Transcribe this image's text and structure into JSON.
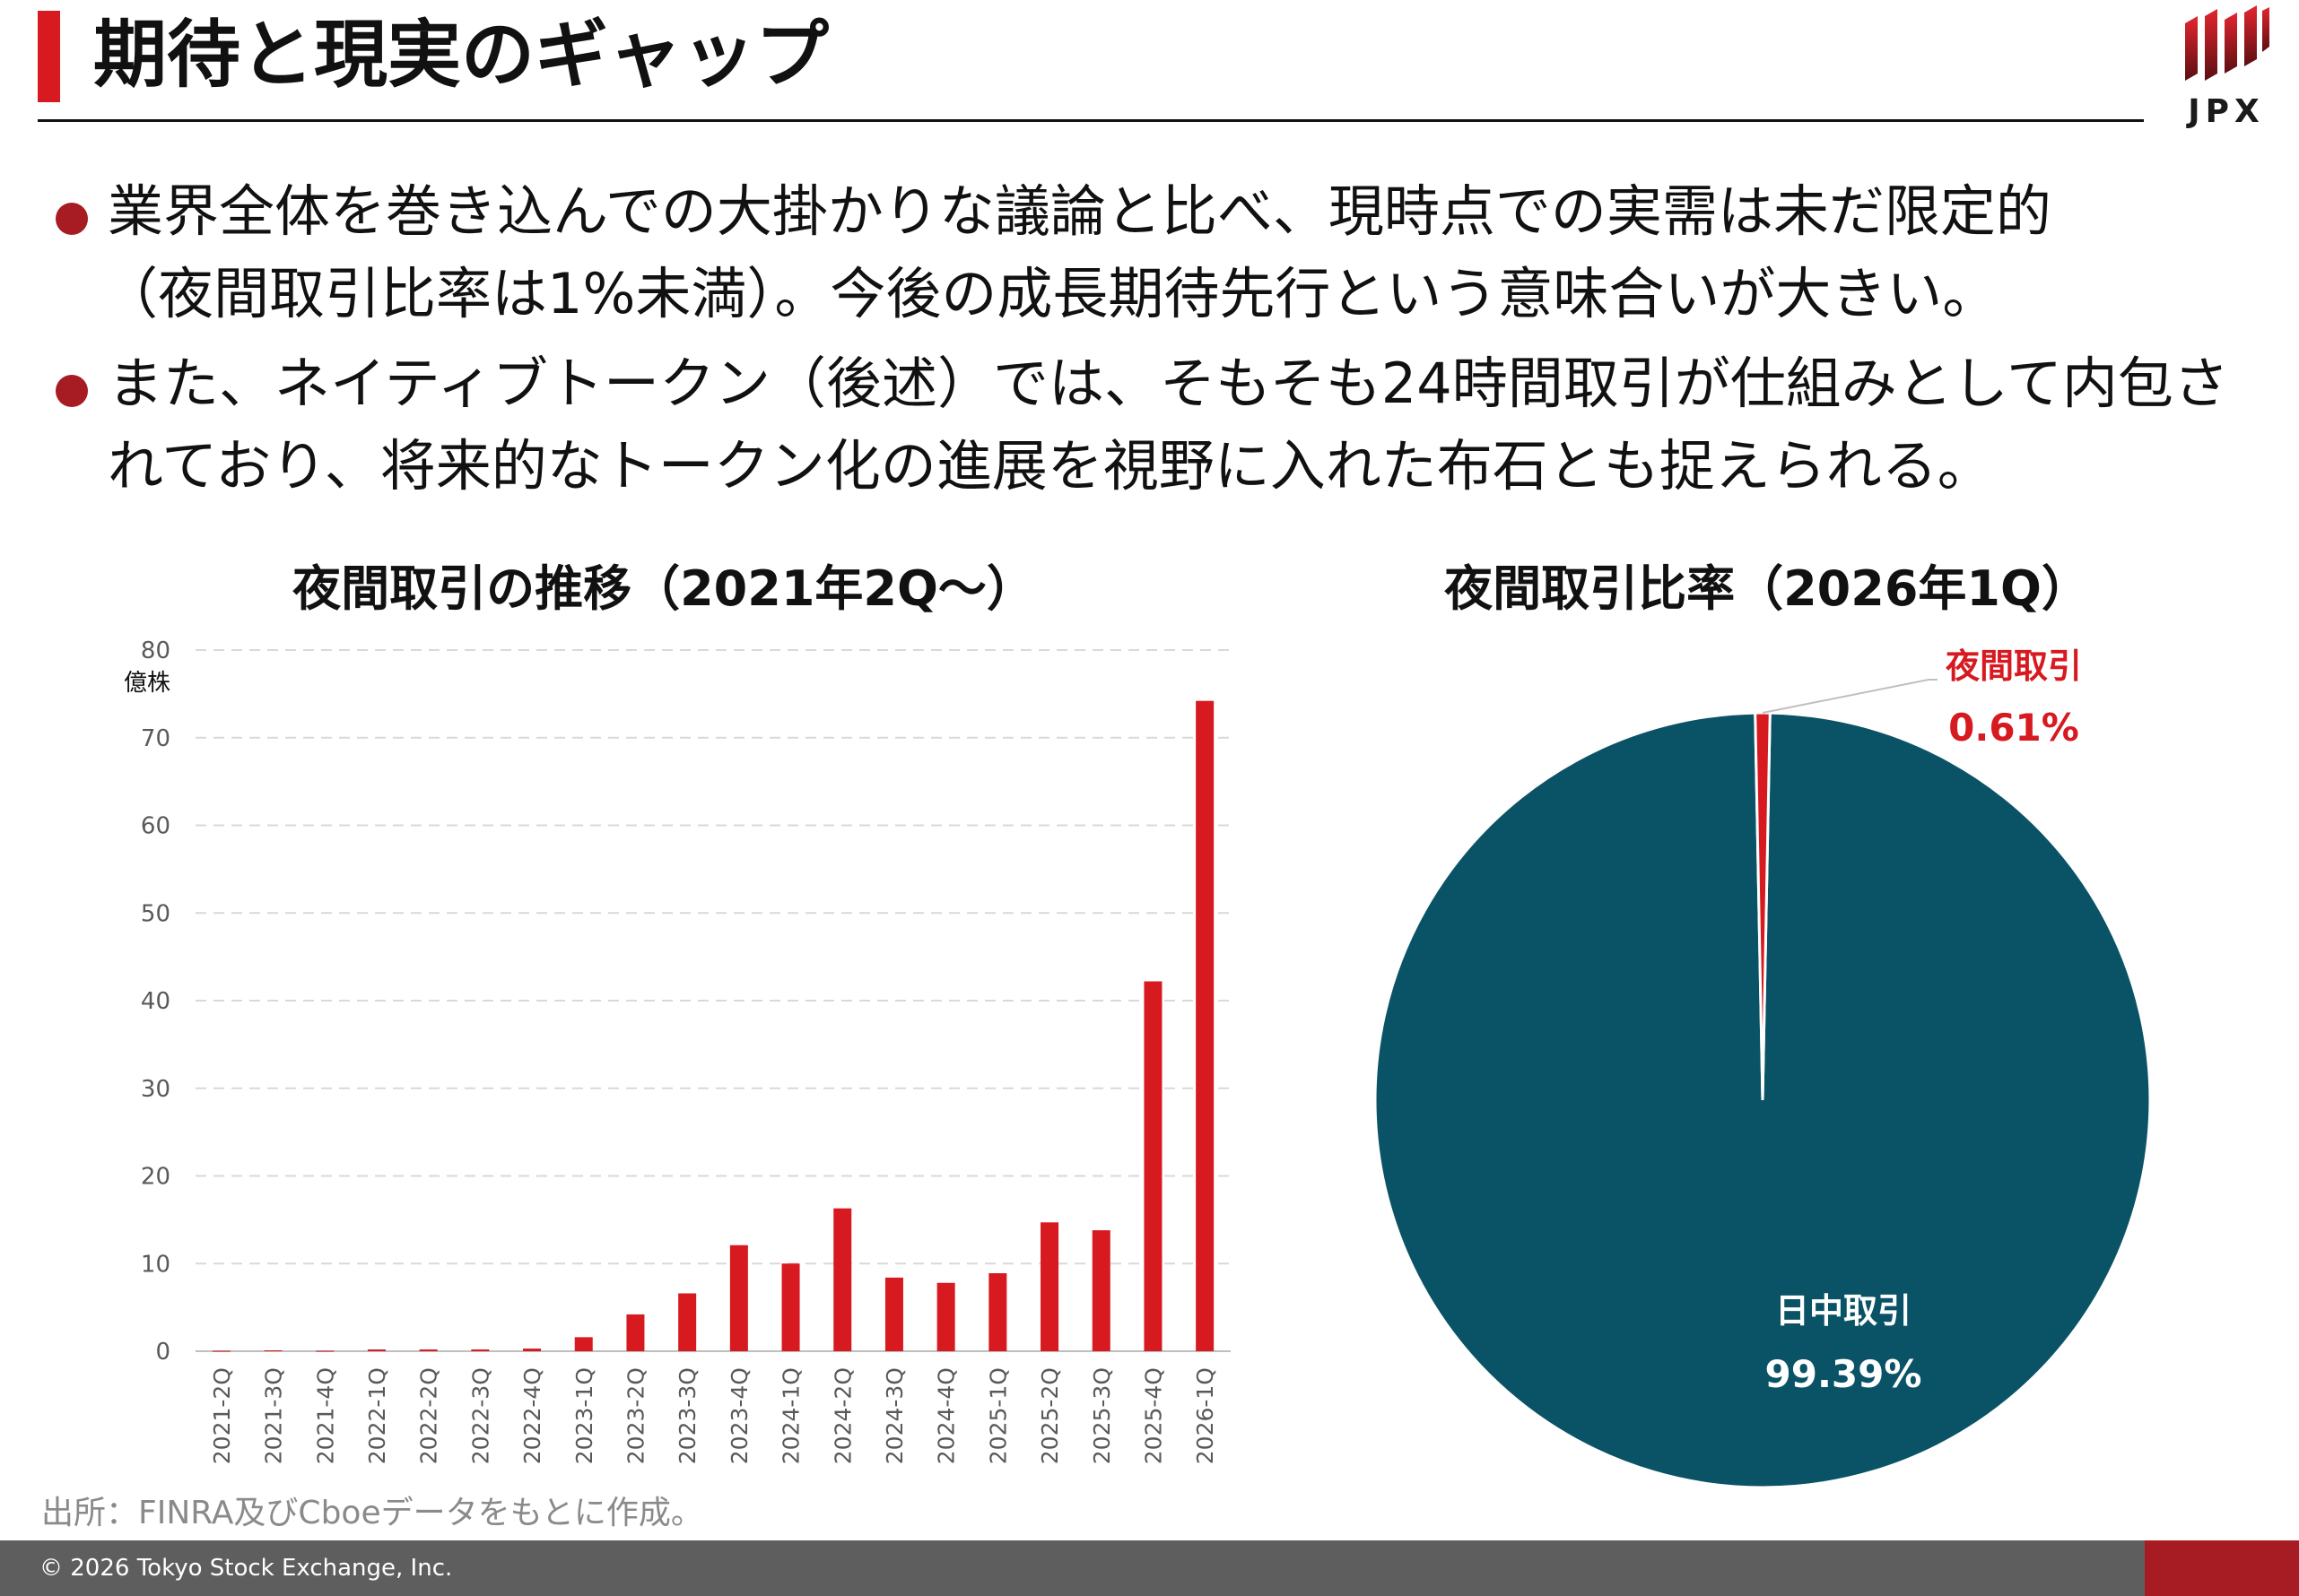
{
  "header": {
    "title": "期待と現実のギャップ",
    "logo_text": "JPX",
    "accent_color": "#d71920"
  },
  "bullets": [
    {
      "line1": "業界全体を巻き込んでの大掛かりな議論と比べ、現時点での実需は未だ限定的",
      "line2": "（夜間取引比率は1%未満）。今後の成長期待先行という意味合いが大きい。"
    },
    {
      "line1": "また、ネイティブトークン（後述）では、そもそも24時間取引が仕組みとして内包さ",
      "line2": "れており、将来的なトークン化の進展を視野に入れた布石とも捉えられる。"
    }
  ],
  "chart_data": [
    {
      "type": "bar",
      "title": "夜間取引の推移（2021年2Q～）",
      "ylabel": "億株",
      "ylim": [
        0,
        80
      ],
      "yticks": [
        0,
        10,
        20,
        30,
        40,
        50,
        60,
        70,
        80
      ],
      "grid": true,
      "categories": [
        "2021-2Q",
        "2021-3Q",
        "2021-4Q",
        "2022-1Q",
        "2022-2Q",
        "2022-3Q",
        "2022-4Q",
        "2023-1Q",
        "2023-2Q",
        "2023-3Q",
        "2023-4Q",
        "2024-1Q",
        "2024-2Q",
        "2024-3Q",
        "2024-4Q",
        "2025-1Q",
        "2025-2Q",
        "2025-3Q",
        "2025-4Q",
        "2026-1Q"
      ],
      "values": [
        0.05,
        0.1,
        0.05,
        0.2,
        0.2,
        0.2,
        0.3,
        1.6,
        4.2,
        6.6,
        12.1,
        10.0,
        16.3,
        8.4,
        7.8,
        8.9,
        14.7,
        13.8,
        42.2,
        74.2
      ],
      "color": "#d71920"
    },
    {
      "type": "pie",
      "title": "夜間取引比率（2026年1Q）",
      "slices": [
        {
          "label": "夜間取引",
          "value": 0.61,
          "display": "0.61%",
          "color": "#d71920"
        },
        {
          "label": "日中取引",
          "value": 99.39,
          "display": "99.39%",
          "color": "#0a5366"
        }
      ]
    }
  ],
  "source_note": "出所：FINRA及びCboeデータをもとに作成。",
  "footer": {
    "copyright": "© 2026 Tokyo Stock Exchange, Inc.",
    "accent_color": "#a61c22"
  }
}
